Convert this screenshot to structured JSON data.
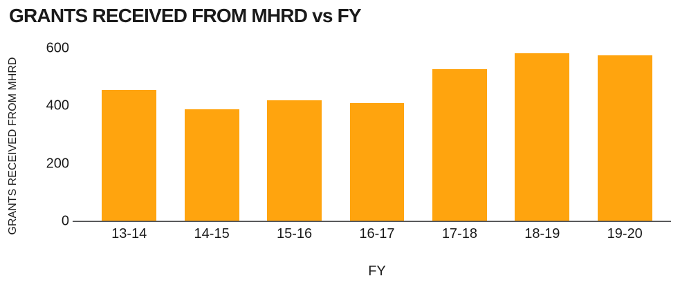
{
  "title": "GRANTS RECEIVED FROM MHRD vs FY",
  "colors": {
    "bar": "#ffa40e",
    "axis_line": "#58595b",
    "text": "#1a1a1a",
    "background": "#ffffff"
  },
  "chart_data": {
    "type": "bar",
    "title": "GRANTS RECEIVED FROM MHRD vs FY",
    "xlabel": "FY",
    "ylabel": "GRANTS RECEIVED FROM MHRD",
    "categories": [
      "13-14",
      "14-15",
      "15-16",
      "16-17",
      "17-18",
      "18-19",
      "19-20"
    ],
    "values": [
      455,
      390,
      420,
      410,
      528,
      583,
      577
    ],
    "yticks": [
      0,
      200,
      400,
      600
    ],
    "ylim": [
      0,
      600
    ],
    "grid": false,
    "legend": "none",
    "bar_color": "#ffa40e"
  }
}
